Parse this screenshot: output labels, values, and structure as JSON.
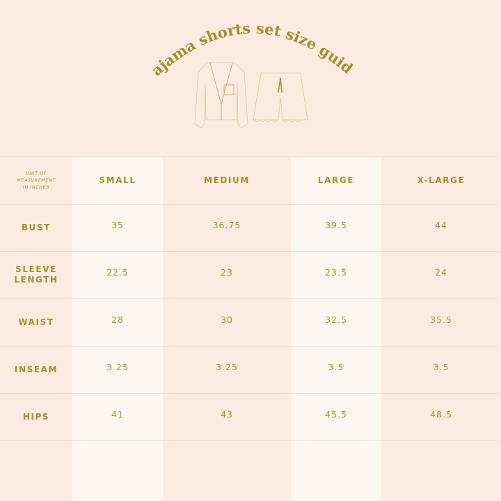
{
  "title": "pajama shorts set size guide",
  "colors": {
    "background": "#fdebe2",
    "highlight_column": "#fdf7f1",
    "text": "#a0902e",
    "lines": "#f1d8cc"
  },
  "illustration": {
    "items": [
      "shirt-icon",
      "shorts-icon"
    ]
  },
  "table": {
    "unit_label": [
      "UNIT OF",
      "MEASUREMENT",
      "IN INCHES"
    ],
    "columns": [
      "SMALL",
      "MEDIUM",
      "LARGE",
      "X-LARGE"
    ],
    "rows": [
      {
        "label": [
          "BUST"
        ],
        "values": [
          "35",
          "36.75",
          "39.5",
          "44"
        ]
      },
      {
        "label": [
          "SLEEVE",
          "LENGTH"
        ],
        "values": [
          "22.5",
          "23",
          "23.5",
          "24"
        ]
      },
      {
        "label": [
          "WAIST"
        ],
        "values": [
          "28",
          "30",
          "32.5",
          "35.5"
        ]
      },
      {
        "label": [
          "INSEAM"
        ],
        "values": [
          "3.25",
          "3.25",
          "3.5",
          "3.5"
        ]
      },
      {
        "label": [
          "HIPS"
        ],
        "values": [
          "41",
          "43",
          "45.5",
          "48.5"
        ]
      }
    ]
  }
}
